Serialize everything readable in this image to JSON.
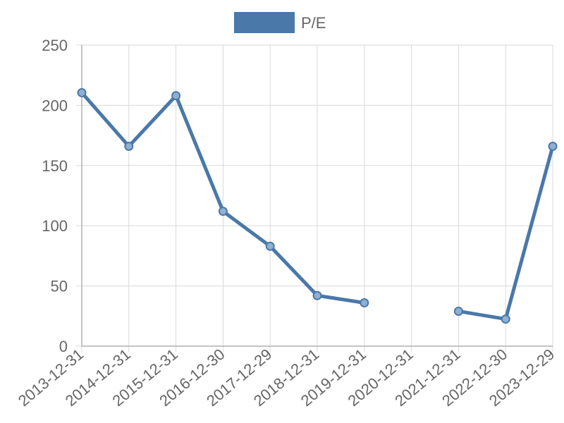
{
  "chart_data": {
    "type": "line",
    "categories": [
      "2013-12-31",
      "2014-12-31",
      "2015-12-31",
      "2016-12-30",
      "2017-12-29",
      "2018-12-31",
      "2019-12-31",
      "2020-12-31",
      "2021-12-31",
      "2022-12-30",
      "2023-12-29"
    ],
    "series": [
      {
        "name": "P/E",
        "color": "#4a78a8",
        "values": [
          210.5,
          166,
          208,
          112,
          83,
          42,
          36,
          null,
          29,
          22.5,
          166
        ]
      }
    ],
    "ylim": [
      0,
      250
    ],
    "yticks": [
      0,
      50,
      100,
      150,
      200,
      250
    ],
    "grid": true,
    "legend": "top-center",
    "x_tick_rotation": -40
  }
}
